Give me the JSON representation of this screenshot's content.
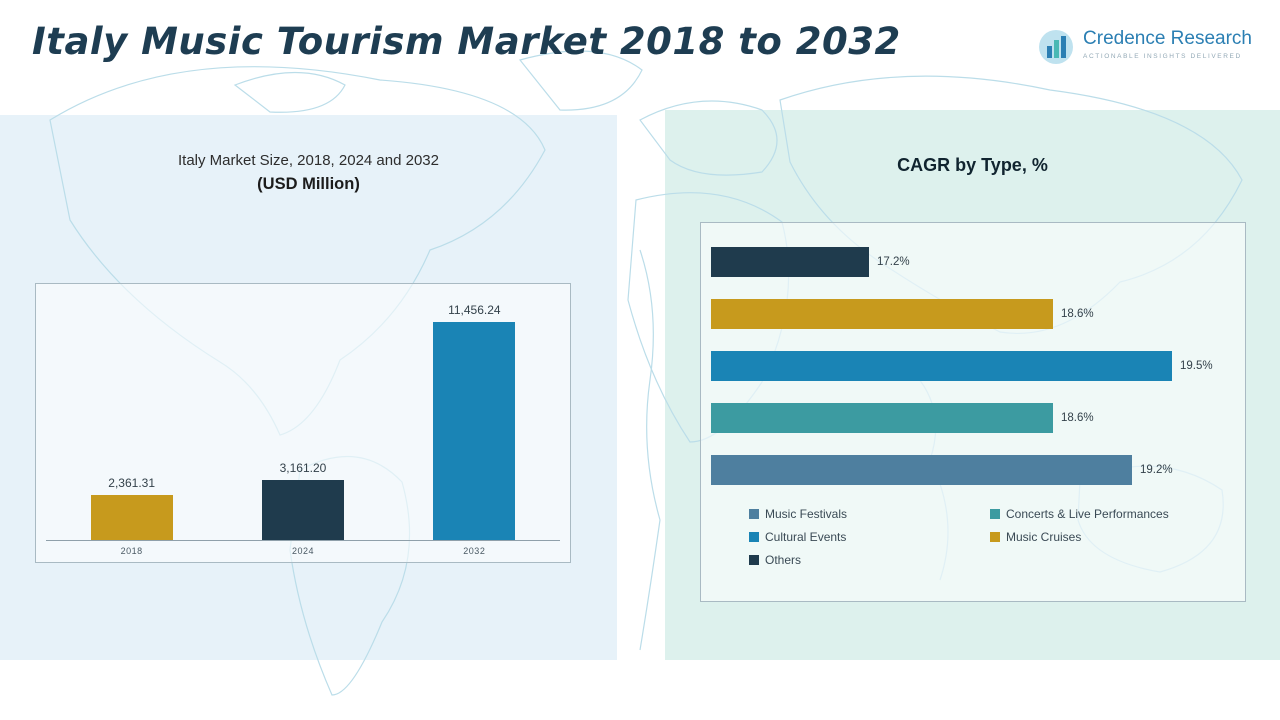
{
  "page": {
    "title": "Italy Music Tourism Market 2018 to 2032"
  },
  "logo": {
    "name": "Credence Research",
    "tagline": "Actionable Insights Delivered"
  },
  "left_chart": {
    "title_line1": "Italy Market Size, 2018, 2024 and 2032",
    "title_line2": "(USD Million)"
  },
  "right_chart": {
    "title": "CAGR by Type, %"
  },
  "chart_data": [
    {
      "type": "bar",
      "title": "Italy Market Size, 2018, 2024 and 2032 (USD Million)",
      "categories": [
        "2018",
        "2024",
        "2032"
      ],
      "values": [
        2361.31,
        3161.2,
        11456.24
      ],
      "value_labels": [
        "2,361.31",
        "3,161.20",
        "11,456.24"
      ],
      "colors": [
        "#c79a1d",
        "#1f3b4d",
        "#1a84b5"
      ],
      "xlabel": "",
      "ylabel": "USD Million",
      "ylim": [
        0,
        12000
      ],
      "grid": false,
      "legend_position": "none"
    },
    {
      "type": "bar",
      "orientation": "horizontal",
      "title": "CAGR by Type, %",
      "categories": [
        "Others",
        "Music Cruises",
        "Cultural Events",
        "Concerts & Live Performances",
        "Music Festivals"
      ],
      "values": [
        17.2,
        18.6,
        19.5,
        18.6,
        19.2
      ],
      "value_labels": [
        "17.2%",
        "18.6%",
        "19.5%",
        "18.6%",
        "19.2%"
      ],
      "colors": [
        "#1f3b4d",
        "#c79a1d",
        "#1a84b5",
        "#3c9ba1",
        "#4e7f9f"
      ],
      "xlabel": "CAGR %",
      "ylabel": "",
      "xlim": [
        16,
        19.8
      ],
      "grid": false,
      "legend_position": "bottom",
      "legend": [
        {
          "label": "Music Festivals",
          "color": "#4e7f9f"
        },
        {
          "label": "Concerts & Live Performances",
          "color": "#3c9ba1"
        },
        {
          "label": "Cultural Events",
          "color": "#1a84b5"
        },
        {
          "label": "Music Cruises",
          "color": "#c79a1d"
        },
        {
          "label": "Others",
          "color": "#1f3b4d"
        }
      ]
    }
  ]
}
